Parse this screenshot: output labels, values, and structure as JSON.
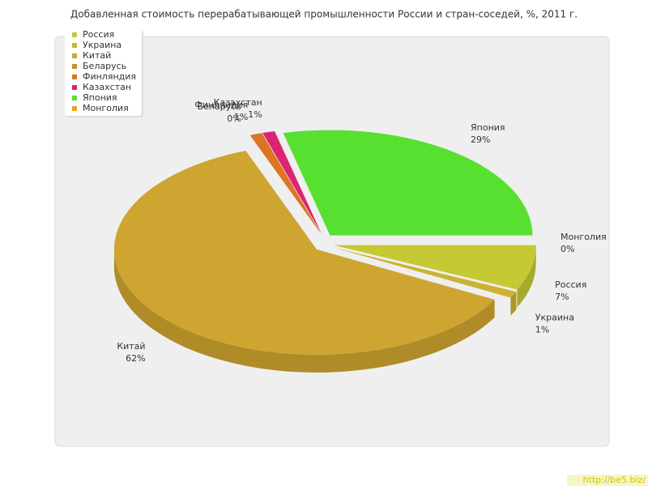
{
  "chart_data": {
    "type": "pie",
    "title": "Добавленная стоимость перерабатывающей промышленности России и стран-соседей, %, 2011 г.",
    "categories": [
      "Россия",
      "Украина",
      "Китай",
      "Беларусь",
      "Финляндия",
      "Казахстан",
      "Япония",
      "Монголия"
    ],
    "values": [
      7,
      1,
      62,
      0,
      1,
      1,
      29,
      0
    ],
    "value_labels": [
      "7%",
      "1%",
      "62%",
      "0%",
      "1%",
      "1%",
      "29%",
      "0%"
    ],
    "colors": [
      "#c4c934",
      "#ccb230",
      "#cea530",
      "#cc8e2a",
      "#dc7424",
      "#dc2470",
      "#58e030",
      "#e8a424"
    ],
    "legend": "top-left"
  },
  "watermark": "http://be5.biz/"
}
